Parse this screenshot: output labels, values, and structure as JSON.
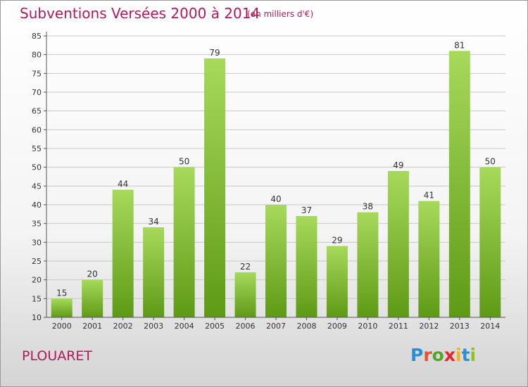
{
  "header": {
    "title": "Subventions Versées 2000 à 2014",
    "unit": "(en milliers d'€)"
  },
  "footer": {
    "place": "PLOUARET",
    "logo": {
      "letters": [
        "P",
        "r",
        "o",
        "x",
        "i",
        "t",
        "i"
      ],
      "colors": [
        "#2a8fd6",
        "#e8512a",
        "#55a628",
        "#e3262d",
        "#f2b417",
        "#2a8fd6",
        "#8fc21e"
      ]
    }
  },
  "chart_data": {
    "type": "bar",
    "categories": [
      "2000",
      "2001",
      "2002",
      "2003",
      "2004",
      "2005",
      "2006",
      "2007",
      "2008",
      "2009",
      "2010",
      "2011",
      "2012",
      "2013",
      "2014"
    ],
    "values": [
      15,
      20,
      44,
      34,
      50,
      79,
      22,
      40,
      37,
      29,
      38,
      49,
      41,
      81,
      50
    ],
    "ylim": [
      10,
      85
    ],
    "yticks": [
      10,
      15,
      20,
      25,
      30,
      35,
      40,
      45,
      50,
      55,
      60,
      65,
      70,
      75,
      80,
      85
    ],
    "grid": true,
    "colors": {
      "bar_top": "#a7d95b",
      "bar_bottom": "#5e9a16",
      "grid": "#c8c8c8"
    }
  }
}
